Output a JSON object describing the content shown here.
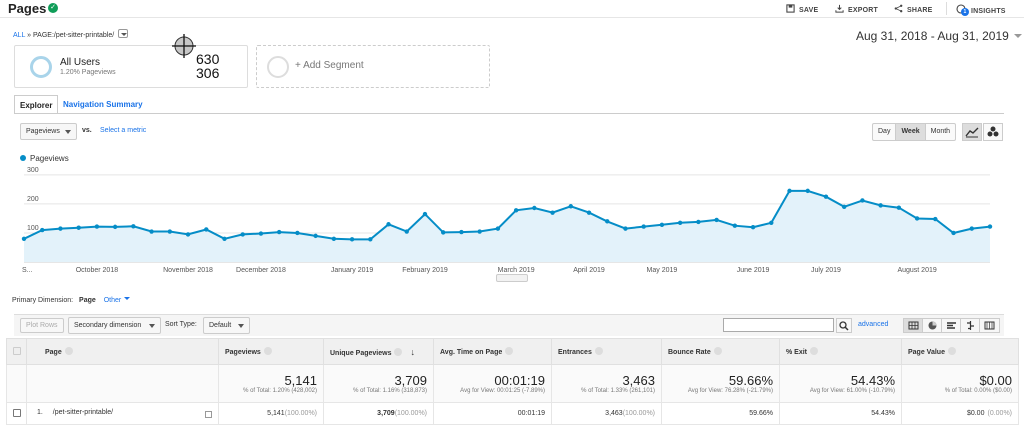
{
  "page": {
    "title": "Pages"
  },
  "toolbar": {
    "save": "SAVE",
    "export": "EXPORT",
    "share": "SHARE",
    "insights": "INSIGHTS",
    "insights_badge": "1"
  },
  "breadcrumb": {
    "all": "ALL",
    "sep": "»",
    "page_label": "PAGE:",
    "page_value": "/pet-sitter-printable/"
  },
  "date_range": "Aug 31, 2018 - Aug 31, 2019",
  "segments": {
    "active": {
      "name": "All Users",
      "sub": "1.20% Pageviews"
    },
    "add": "+ Add Segment"
  },
  "cursor_readout": {
    "x": "630",
    "y": "306"
  },
  "tabs": [
    {
      "label": "Explorer"
    },
    {
      "label": "Navigation Summary"
    }
  ],
  "metric_controls": {
    "metric": "Pageviews",
    "vs": "vs.",
    "select": "Select a metric"
  },
  "granularity": [
    {
      "label": "Day"
    },
    {
      "label": "Week",
      "active": true
    },
    {
      "label": "Month"
    }
  ],
  "chart_data": {
    "type": "line",
    "series": [
      {
        "name": "Pageviews",
        "values": [
          80,
          110,
          115,
          118,
          122,
          121,
          123,
          105,
          105,
          95,
          112,
          80,
          95,
          98,
          103,
          100,
          90,
          80,
          78,
          78,
          130,
          105,
          165,
          102,
          103,
          105,
          115,
          178,
          186,
          170,
          192,
          170,
          140,
          115,
          122,
          128,
          135,
          138,
          145,
          125,
          120,
          135,
          245,
          245,
          225,
          190,
          212,
          195,
          187,
          150,
          148,
          100,
          115,
          122
        ]
      }
    ],
    "x_tick_labels": [
      "S...",
      "October 2018",
      "November 2018",
      "December 2018",
      "January 2019",
      "February 2019",
      "March 2019",
      "April 2019",
      "May 2019",
      "June 2019",
      "July 2019",
      "August 2019"
    ],
    "x_tick_index": [
      0,
      4,
      9,
      13,
      18,
      22,
      27,
      31,
      35,
      40,
      44,
      49
    ],
    "y_ticks": [
      100,
      200,
      300
    ],
    "ylim": [
      0,
      310
    ],
    "color": "#058dc7",
    "fill": "#e3f2fa"
  },
  "primary_dimension": {
    "label": "Primary Dimension:",
    "value": "Page",
    "other": "Other"
  },
  "table_controls": {
    "plot_rows": "Plot Rows",
    "secondary": "Secondary dimension",
    "sort_type_label": "Sort Type:",
    "sort_type": "Default",
    "advanced": "advanced"
  },
  "table": {
    "columns": [
      "Page",
      "Pageviews",
      "Unique Pageviews",
      "Avg. Time on Page",
      "Entrances",
      "Bounce Rate",
      "% Exit",
      "Page Value"
    ],
    "totals": [
      {
        "value": "5,141",
        "sub": "% of Total: 1.20% (428,002)"
      },
      {
        "value": "3,709",
        "sub": "% of Total: 1.16% (318,873)"
      },
      {
        "value": "00:01:19",
        "sub": "Avg for View: 00:01:25 (-7.89%)"
      },
      {
        "value": "3,463",
        "sub": "% of Total: 1.33% (261,101)"
      },
      {
        "value": "59.66%",
        "sub": "Avg for View: 76.28% (-21.79%)"
      },
      {
        "value": "54.43%",
        "sub": "Avg for View: 61.00% (-10.79%)"
      },
      {
        "value": "$0.00",
        "sub": "% of Total: 0.00% ($0.00)"
      }
    ],
    "rows": [
      {
        "index": "1.",
        "page": "/pet-sitter-printable/",
        "pageviews": "5,141",
        "pageviews_pct": "(100.00%)",
        "unique": "3,709",
        "unique_pct": "(100.00%)",
        "avg_time": "00:01:19",
        "entrances": "3,463",
        "entrances_pct": "(100.00%)",
        "bounce": "59.66%",
        "exit": "54.43%",
        "value": "$0.00",
        "value_pct": "(0.00%)"
      }
    ]
  }
}
